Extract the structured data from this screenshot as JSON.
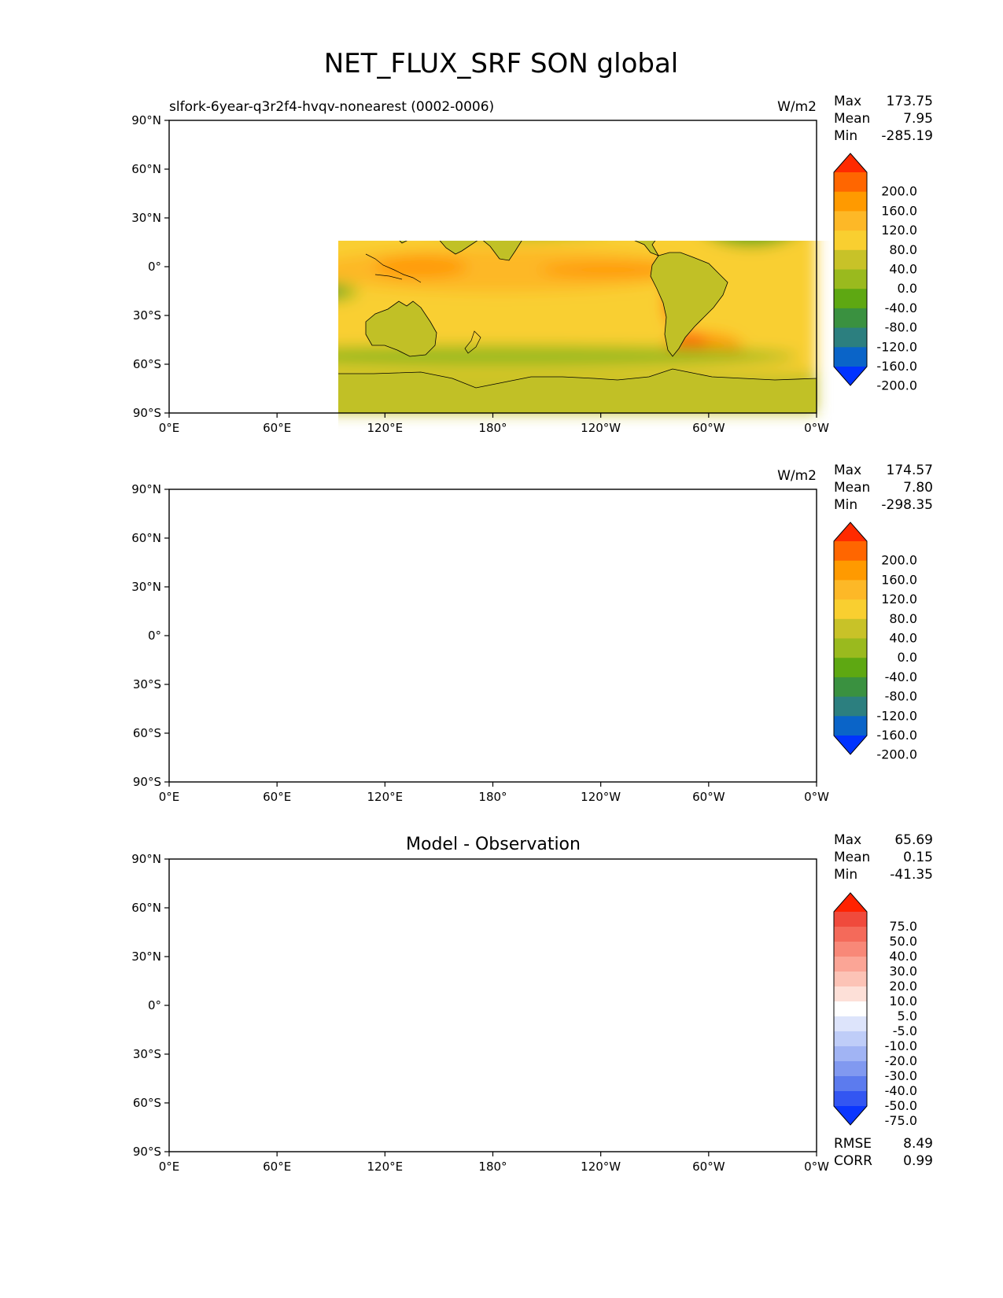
{
  "title": "NET_FLUX_SRF SON global",
  "lat_ticks": [
    "90°N",
    "60°N",
    "30°N",
    "0°",
    "30°S",
    "60°S",
    "90°S"
  ],
  "lon_ticks": [
    "0°E",
    "60°E",
    "120°E",
    "180°",
    "120°W",
    "60°W",
    "0°W"
  ],
  "panels": [
    {
      "left_title": "slfork-6year-q3r2f4-hvqv-nonearest (0002-0006)",
      "center_title": "",
      "units": "W/m2",
      "stats": [
        {
          "label": "Max",
          "value": "173.75"
        },
        {
          "label": "Mean",
          "value": "7.95"
        },
        {
          "label": "Min",
          "value": "-285.19"
        }
      ],
      "colorbar": {
        "labels": [
          "200.0",
          "160.0",
          "120.0",
          "80.0",
          "40.0",
          "0.0",
          "-40.0",
          "-80.0",
          "-120.0",
          "-160.0",
          "-200.0"
        ],
        "colors": [
          "#ff2a00",
          "#ff6600",
          "#ff9a00",
          "#fdb827",
          "#f9cf30",
          "#c8c228",
          "#9aba1e",
          "#5ea812",
          "#3a9140",
          "#2c7f7f",
          "#0a64c8",
          "#0033ff"
        ]
      },
      "field": "model"
    },
    {
      "left_title": "",
      "center_title": "",
      "units": "W/m2",
      "stats": [
        {
          "label": "Max",
          "value": "174.57"
        },
        {
          "label": "Mean",
          "value": "7.80"
        },
        {
          "label": "Min",
          "value": "-298.35"
        }
      ],
      "colorbar": {
        "labels": [
          "200.0",
          "160.0",
          "120.0",
          "80.0",
          "40.0",
          "0.0",
          "-40.0",
          "-80.0",
          "-120.0",
          "-160.0",
          "-200.0"
        ],
        "colors": [
          "#ff2a00",
          "#ff6600",
          "#ff9a00",
          "#fdb827",
          "#f9cf30",
          "#c8c228",
          "#9aba1e",
          "#5ea812",
          "#3a9140",
          "#2c7f7f",
          "#0a64c8",
          "#0033ff"
        ]
      },
      "field": "obs"
    },
    {
      "left_title": "",
      "center_title": "Model - Observation",
      "units": "",
      "stats": [
        {
          "label": "Max",
          "value": "65.69"
        },
        {
          "label": "Mean",
          "value": "0.15"
        },
        {
          "label": "Min",
          "value": "-41.35"
        }
      ],
      "colorbar": {
        "labels": [
          "75.0",
          "50.0",
          "40.0",
          "30.0",
          "20.0",
          "10.0",
          "5.0",
          "-5.0",
          "-10.0",
          "-20.0",
          "-30.0",
          "-40.0",
          "-50.0",
          "-75.0"
        ],
        "colors": [
          "#ff2200",
          "#f04a3c",
          "#f46a5a",
          "#f88878",
          "#fba596",
          "#fcc3b6",
          "#fde0d8",
          "#ffffff",
          "#dde4fb",
          "#bfcdf8",
          "#a1b4f4",
          "#8199f0",
          "#5c7bee",
          "#3356f2",
          "#0a36ff"
        ]
      },
      "field": "diff",
      "metrics": [
        {
          "label": "RMSE",
          "value": "8.49"
        },
        {
          "label": "CORR",
          "value": "0.99"
        }
      ]
    }
  ]
}
